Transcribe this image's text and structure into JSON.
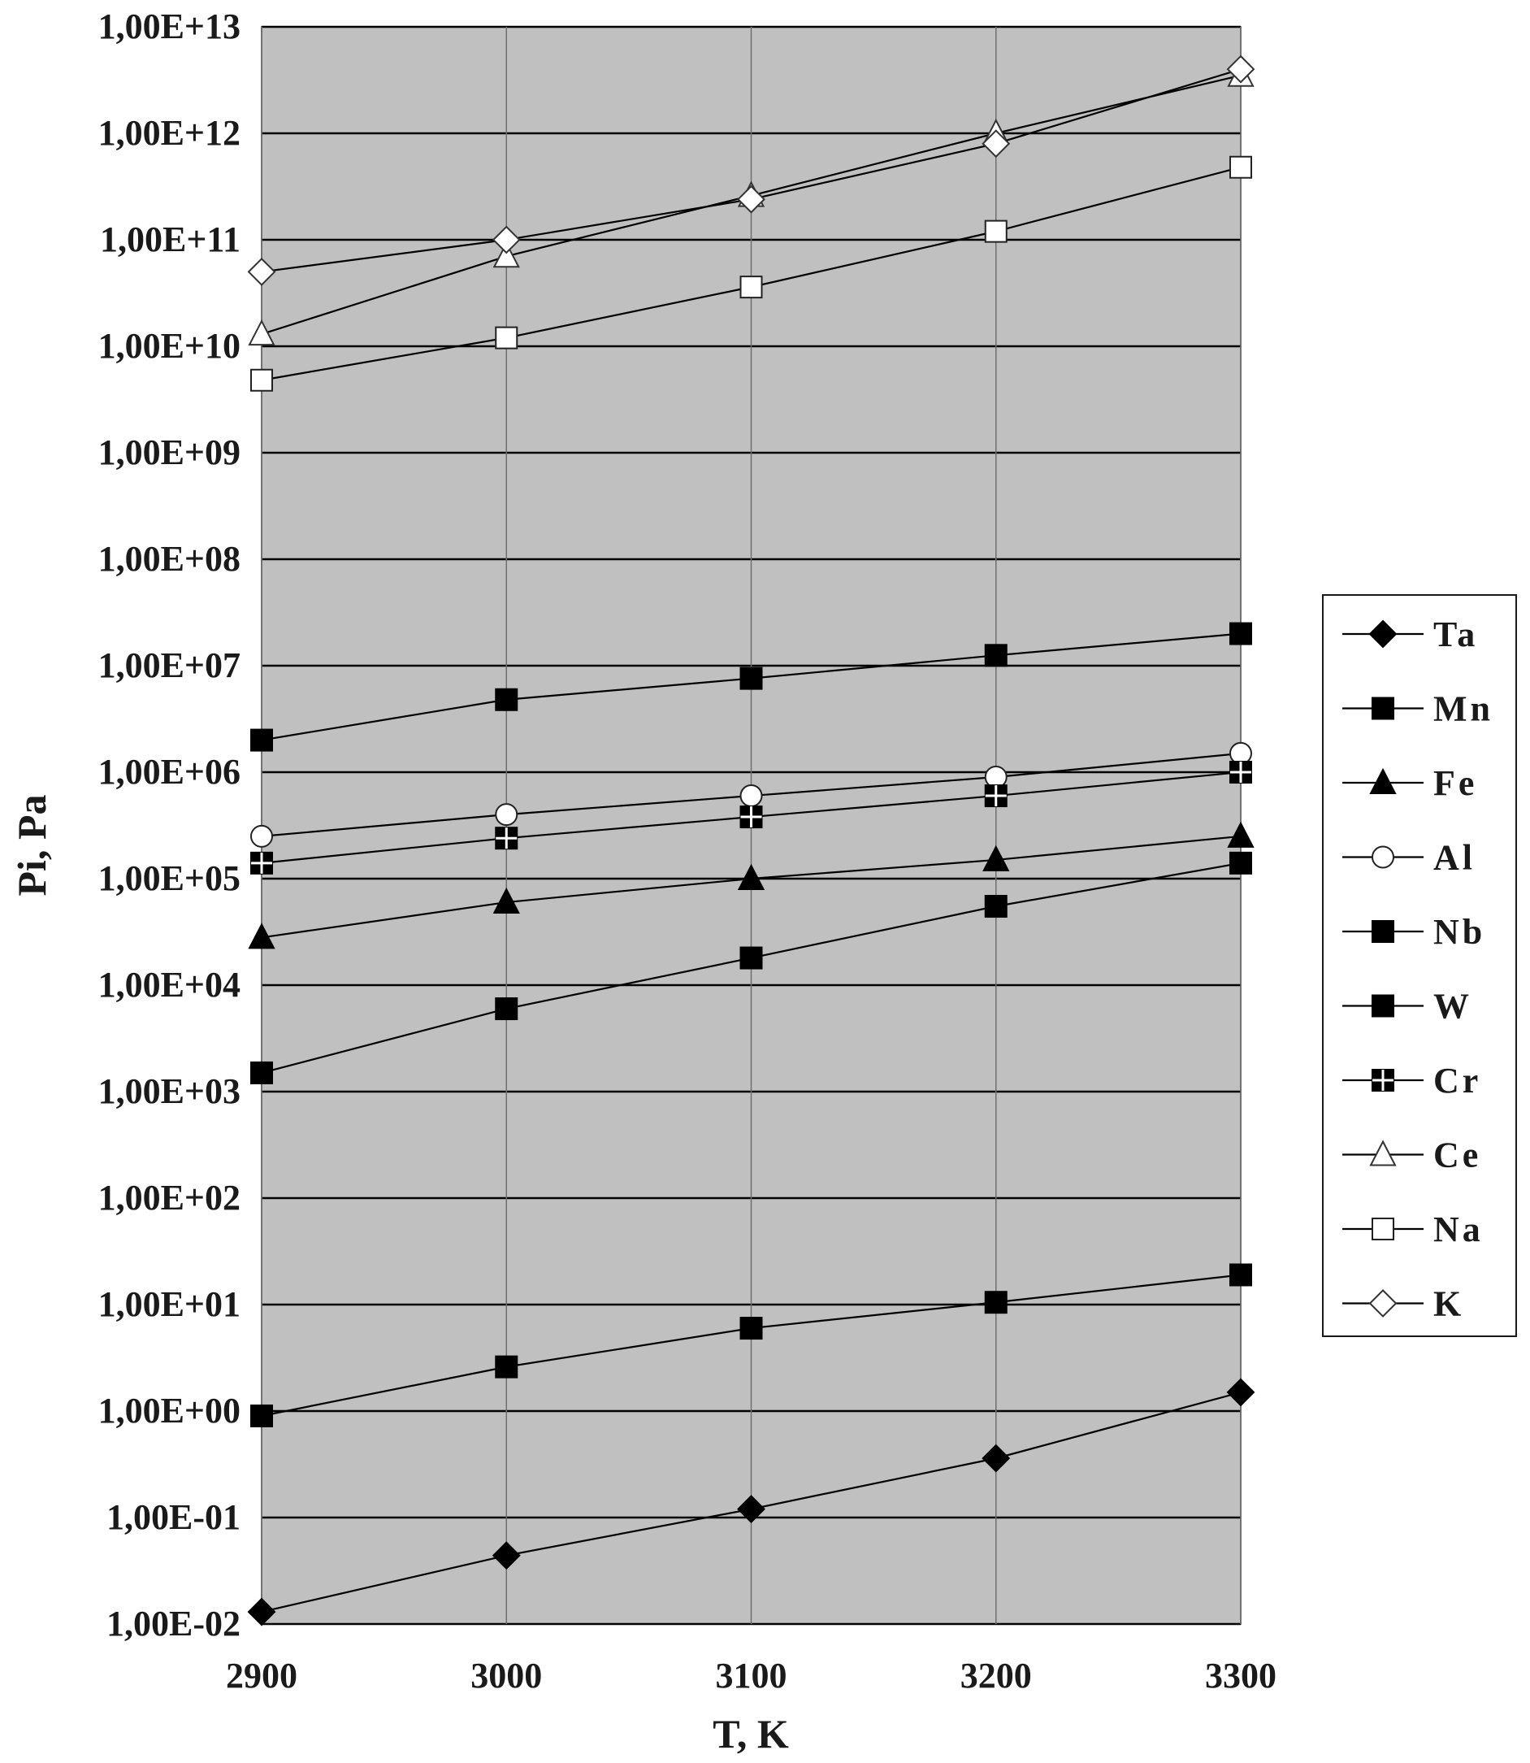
{
  "chart_data": {
    "type": "line",
    "title": "",
    "xlabel": "T, K",
    "ylabel": "Pi, Pa",
    "y_scale": "log",
    "x": [
      2900,
      3000,
      3100,
      3200,
      3300
    ],
    "x_tick_labels": [
      "2900",
      "3000",
      "3100",
      "3200",
      "3300"
    ],
    "xlim": [
      2900,
      3300
    ],
    "ylim": [
      0.01,
      10000000000000.0
    ],
    "y_tick_labels": [
      "1,00E-02",
      "1,00E-01",
      "1,00E+00",
      "1,00E+01",
      "1,00E+02",
      "1,00E+03",
      "1,00E+04",
      "1,00E+05",
      "1,00E+06",
      "1,00E+07",
      "1,00E+08",
      "1,00E+09",
      "1,00E+10",
      "1,00E+11",
      "1,00E+12",
      "1,00E+13"
    ],
    "grid": true,
    "plot_background": "#c0c0c0",
    "legend_position": "right",
    "series": [
      {
        "name": "Ta",
        "marker": "diamond-filled",
        "values": [
          0.013,
          0.044,
          0.12,
          0.36,
          1.5
        ]
      },
      {
        "name": "Mn",
        "marker": "square-filled",
        "values": [
          2000000,
          4800000,
          7600000,
          12500000,
          20000000
        ]
      },
      {
        "name": "Fe",
        "marker": "triangle-filled",
        "values": [
          28000,
          60000,
          100000,
          150000,
          250000
        ]
      },
      {
        "name": "Al",
        "marker": "circle-open",
        "values": [
          250000,
          400000,
          600000,
          900000,
          1500000
        ]
      },
      {
        "name": "Nb",
        "marker": "square-filled",
        "values": [
          0.9,
          2.6,
          6,
          10.5,
          19
        ]
      },
      {
        "name": "W",
        "marker": "square-filled",
        "values": [
          1500,
          6000,
          18000,
          55000,
          140000
        ]
      },
      {
        "name": "Cr",
        "marker": "square-cross",
        "values": [
          140000,
          240000,
          380000,
          600000,
          1000000
        ]
      },
      {
        "name": "Ce",
        "marker": "triangle-open",
        "values": [
          13000000000,
          70000000000,
          260000000000,
          1000000000000,
          3500000000000
        ]
      },
      {
        "name": "Na",
        "marker": "square-open",
        "values": [
          4800000000,
          12000000000,
          36000000000,
          120000000000,
          480000000000
        ]
      },
      {
        "name": "K",
        "marker": "diamond-open",
        "values": [
          50000000000,
          100000000000,
          240000000000,
          800000000000,
          4000000000000
        ]
      }
    ]
  }
}
